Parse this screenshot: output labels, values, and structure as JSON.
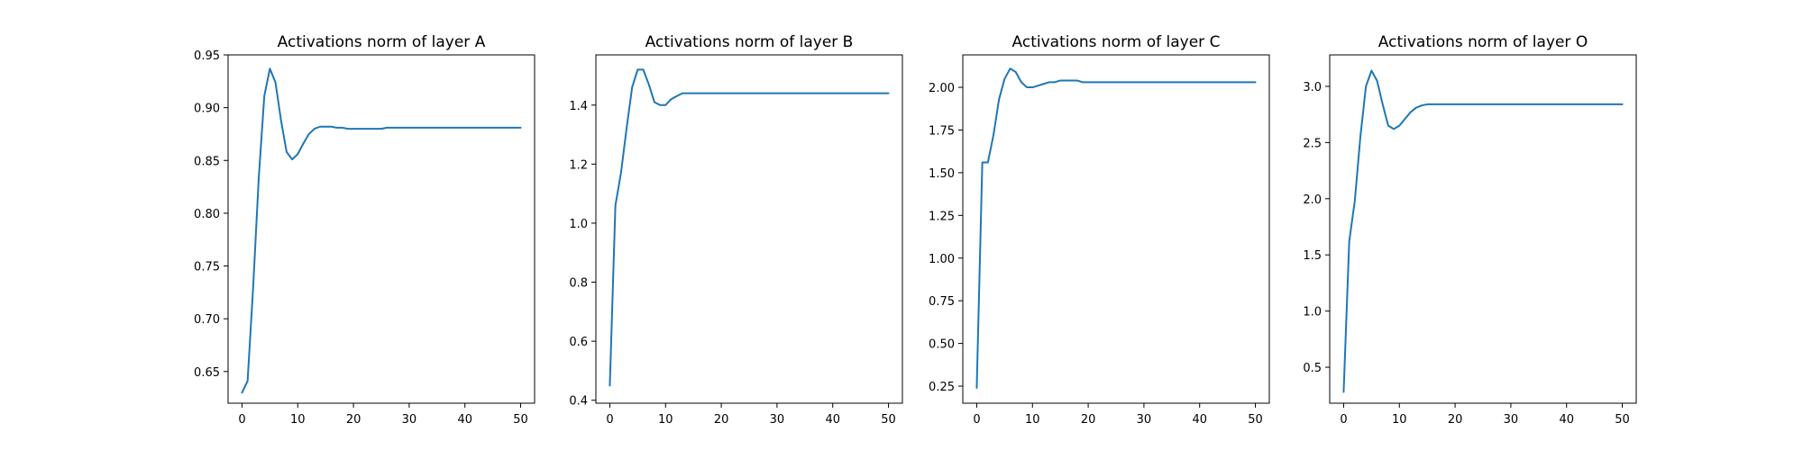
{
  "chart_data": [
    {
      "type": "line",
      "title": "Activations norm of layer A",
      "xlim": [
        -2.5,
        52.5
      ],
      "ylim": [
        0.62,
        0.95
      ],
      "xticks": [
        0,
        10,
        20,
        30,
        40,
        50
      ],
      "yticks": [
        0.65,
        0.7,
        0.75,
        0.8,
        0.85,
        0.9,
        0.95
      ],
      "ytick_decimals": 2,
      "series": [
        {
          "color": "#1f77b4",
          "x": [
            0,
            1,
            2,
            3,
            4,
            5,
            6,
            7,
            8,
            9,
            10,
            11,
            12,
            13,
            14,
            15,
            16,
            17,
            18,
            19,
            20,
            21,
            22,
            23,
            24,
            25,
            26,
            27,
            28,
            29,
            30,
            31,
            32,
            33,
            34,
            35,
            36,
            37,
            38,
            39,
            40,
            41,
            42,
            43,
            44,
            45,
            46,
            47,
            48,
            49,
            50
          ],
          "y": [
            0.63,
            0.641,
            0.73,
            0.833,
            0.911,
            0.937,
            0.924,
            0.888,
            0.858,
            0.851,
            0.856,
            0.866,
            0.875,
            0.88,
            0.882,
            0.882,
            0.882,
            0.881,
            0.881,
            0.88,
            0.88,
            0.88,
            0.88,
            0.88,
            0.88,
            0.88,
            0.881,
            0.881,
            0.881,
            0.881,
            0.881,
            0.881,
            0.881,
            0.881,
            0.881,
            0.881,
            0.881,
            0.881,
            0.881,
            0.881,
            0.881,
            0.881,
            0.881,
            0.881,
            0.881,
            0.881,
            0.881,
            0.881,
            0.881,
            0.881,
            0.881
          ]
        }
      ]
    },
    {
      "type": "line",
      "title": "Activations norm of layer B",
      "xlim": [
        -2.5,
        52.5
      ],
      "ylim": [
        0.39,
        1.57
      ],
      "xticks": [
        0,
        10,
        20,
        30,
        40,
        50
      ],
      "yticks": [
        0.4,
        0.6,
        0.8,
        1.0,
        1.2,
        1.4
      ],
      "ytick_decimals": 1,
      "series": [
        {
          "color": "#1f77b4",
          "x": [
            0,
            1,
            2,
            3,
            4,
            5,
            6,
            7,
            8,
            9,
            10,
            11,
            12,
            13,
            14,
            15,
            16,
            17,
            18,
            19,
            20,
            21,
            22,
            23,
            24,
            25,
            26,
            27,
            28,
            29,
            30,
            31,
            32,
            33,
            34,
            35,
            36,
            37,
            38,
            39,
            40,
            41,
            42,
            43,
            44,
            45,
            46,
            47,
            48,
            49,
            50
          ],
          "y": [
            0.45,
            1.06,
            1.17,
            1.32,
            1.46,
            1.52,
            1.52,
            1.47,
            1.41,
            1.4,
            1.4,
            1.42,
            1.43,
            1.44,
            1.44,
            1.44,
            1.44,
            1.44,
            1.44,
            1.44,
            1.44,
            1.44,
            1.44,
            1.44,
            1.44,
            1.44,
            1.44,
            1.44,
            1.44,
            1.44,
            1.44,
            1.44,
            1.44,
            1.44,
            1.44,
            1.44,
            1.44,
            1.44,
            1.44,
            1.44,
            1.44,
            1.44,
            1.44,
            1.44,
            1.44,
            1.44,
            1.44,
            1.44,
            1.44,
            1.44,
            1.44
          ]
        }
      ]
    },
    {
      "type": "line",
      "title": "Activations norm of layer C",
      "xlim": [
        -2.5,
        52.5
      ],
      "ylim": [
        0.15,
        2.19
      ],
      "xticks": [
        0,
        10,
        20,
        30,
        40,
        50
      ],
      "yticks": [
        0.25,
        0.5,
        0.75,
        1.0,
        1.25,
        1.5,
        1.75,
        2.0
      ],
      "ytick_decimals": 2,
      "series": [
        {
          "color": "#1f77b4",
          "x": [
            0,
            1,
            2,
            3,
            4,
            5,
            6,
            7,
            8,
            9,
            10,
            11,
            12,
            13,
            14,
            15,
            16,
            17,
            18,
            19,
            20,
            21,
            22,
            23,
            24,
            25,
            26,
            27,
            28,
            29,
            30,
            31,
            32,
            33,
            34,
            35,
            36,
            37,
            38,
            39,
            40,
            41,
            42,
            43,
            44,
            45,
            46,
            47,
            48,
            49,
            50
          ],
          "y": [
            0.24,
            1.56,
            1.56,
            1.72,
            1.93,
            2.05,
            2.11,
            2.09,
            2.03,
            2.0,
            2.0,
            2.01,
            2.02,
            2.03,
            2.03,
            2.04,
            2.04,
            2.04,
            2.04,
            2.03,
            2.03,
            2.03,
            2.03,
            2.03,
            2.03,
            2.03,
            2.03,
            2.03,
            2.03,
            2.03,
            2.03,
            2.03,
            2.03,
            2.03,
            2.03,
            2.03,
            2.03,
            2.03,
            2.03,
            2.03,
            2.03,
            2.03,
            2.03,
            2.03,
            2.03,
            2.03,
            2.03,
            2.03,
            2.03,
            2.03,
            2.03
          ]
        }
      ]
    },
    {
      "type": "line",
      "title": "Activations norm of layer O",
      "xlim": [
        -2.5,
        52.5
      ],
      "ylim": [
        0.18,
        3.28
      ],
      "xticks": [
        0,
        10,
        20,
        30,
        40,
        50
      ],
      "yticks": [
        0.5,
        1.0,
        1.5,
        2.0,
        2.5,
        3.0
      ],
      "ytick_decimals": 1,
      "series": [
        {
          "color": "#1f77b4",
          "x": [
            0,
            1,
            2,
            3,
            4,
            5,
            6,
            7,
            8,
            9,
            10,
            11,
            12,
            13,
            14,
            15,
            16,
            17,
            18,
            19,
            20,
            21,
            22,
            23,
            24,
            25,
            26,
            27,
            28,
            29,
            30,
            31,
            32,
            33,
            34,
            35,
            36,
            37,
            38,
            39,
            40,
            41,
            42,
            43,
            44,
            45,
            46,
            47,
            48,
            49,
            50
          ],
          "y": [
            0.28,
            1.62,
            1.98,
            2.55,
            3.0,
            3.14,
            3.05,
            2.84,
            2.65,
            2.62,
            2.65,
            2.71,
            2.77,
            2.81,
            2.83,
            2.84,
            2.84,
            2.84,
            2.84,
            2.84,
            2.84,
            2.84,
            2.84,
            2.84,
            2.84,
            2.84,
            2.84,
            2.84,
            2.84,
            2.84,
            2.84,
            2.84,
            2.84,
            2.84,
            2.84,
            2.84,
            2.84,
            2.84,
            2.84,
            2.84,
            2.84,
            2.84,
            2.84,
            2.84,
            2.84,
            2.84,
            2.84,
            2.84,
            2.84,
            2.84,
            2.84
          ]
        }
      ]
    }
  ]
}
